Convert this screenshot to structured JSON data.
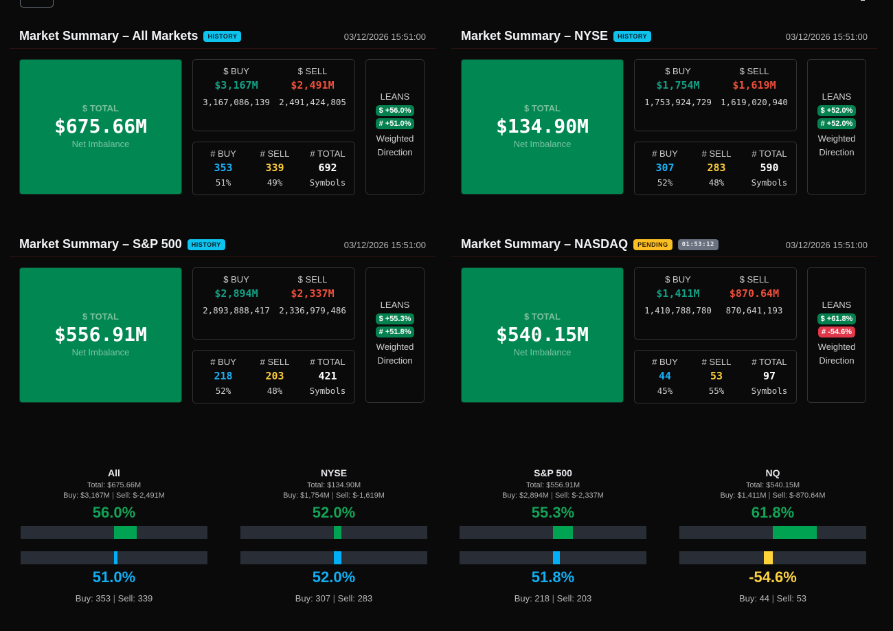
{
  "colors": {
    "background": "#0a0a0a",
    "total_box": "#008752",
    "buy_dollar": "#14a085",
    "sell_dollar": "#ef4f3b",
    "buy_count": "#1ab0f5",
    "sell_count": "#fbcb3a",
    "lean_positive": "#05804f",
    "lean_negative": "#e0384a",
    "bar_track": "#292e36",
    "bar_green": "#00a352",
    "bar_blue": "#00aff5",
    "bar_yellow": "#ffd43b"
  },
  "toolbar": {
    "menu_icon": "menu-icon",
    "top_right_icon": "chevron-down-icon"
  },
  "panels": [
    {
      "title": "Market Summary – All Markets",
      "badge": "HISTORY",
      "badge_type": "history",
      "timer": null,
      "timestamp": "03/12/2026 15:51:00",
      "total_label": "$ TOTAL",
      "total_value": "$675.66M",
      "total_sub": "Net Imbalance",
      "buy_head": "$ BUY",
      "sell_head": "$ SELL",
      "buy_value": "$3,167M",
      "sell_value": "$2,491M",
      "buy_raw": "3,167,086,139",
      "sell_raw": "2,491,424,805",
      "count_buy_head": "# BUY",
      "count_sell_head": "# SELL",
      "count_total_head": "# TOTAL",
      "count_buy": "353",
      "count_sell": "339",
      "count_total": "692",
      "count_buy_pct": "51%",
      "count_sell_pct": "49%",
      "count_total_sub": "Symbols",
      "leans_title": "LEANS",
      "lean_dollar": "$ +56.0%",
      "lean_dollar_sign": "pos",
      "lean_count": "# +51.0%",
      "lean_count_sign": "pos",
      "leans_sub_1": "Weighted",
      "leans_sub_2": "Direction"
    },
    {
      "title": "Market Summary – NYSE",
      "badge": "HISTORY",
      "badge_type": "history",
      "timer": null,
      "timestamp": "03/12/2026 15:51:00",
      "total_label": "$ TOTAL",
      "total_value": "$134.90M",
      "total_sub": "Net Imbalance",
      "buy_head": "$ BUY",
      "sell_head": "$ SELL",
      "buy_value": "$1,754M",
      "sell_value": "$1,619M",
      "buy_raw": "1,753,924,729",
      "sell_raw": "1,619,020,940",
      "count_buy_head": "# BUY",
      "count_sell_head": "# SELL",
      "count_total_head": "# TOTAL",
      "count_buy": "307",
      "count_sell": "283",
      "count_total": "590",
      "count_buy_pct": "52%",
      "count_sell_pct": "48%",
      "count_total_sub": "Symbols",
      "leans_title": "LEANS",
      "lean_dollar": "$ +52.0%",
      "lean_dollar_sign": "pos",
      "lean_count": "# +52.0%",
      "lean_count_sign": "pos",
      "leans_sub_1": "Weighted",
      "leans_sub_2": "Direction"
    },
    {
      "title": "Market Summary – S&P 500",
      "badge": "HISTORY",
      "badge_type": "history",
      "timer": null,
      "timestamp": "03/12/2026 15:51:00",
      "total_label": "$ TOTAL",
      "total_value": "$556.91M",
      "total_sub": "Net Imbalance",
      "buy_head": "$ BUY",
      "sell_head": "$ SELL",
      "buy_value": "$2,894M",
      "sell_value": "$2,337M",
      "buy_raw": "2,893,888,417",
      "sell_raw": "2,336,979,486",
      "count_buy_head": "# BUY",
      "count_sell_head": "# SELL",
      "count_total_head": "# TOTAL",
      "count_buy": "218",
      "count_sell": "203",
      "count_total": "421",
      "count_buy_pct": "52%",
      "count_sell_pct": "48%",
      "count_total_sub": "Symbols",
      "leans_title": "LEANS",
      "lean_dollar": "$ +55.3%",
      "lean_dollar_sign": "pos",
      "lean_count": "# +51.8%",
      "lean_count_sign": "pos",
      "leans_sub_1": "Weighted",
      "leans_sub_2": "Direction"
    },
    {
      "title": "Market Summary – NASDAQ",
      "badge": "PENDING",
      "badge_type": "pending",
      "timer": "01:53:12",
      "timestamp": "03/12/2026 15:51:00",
      "total_label": "$ TOTAL",
      "total_value": "$540.15M",
      "total_sub": "Net Imbalance",
      "buy_head": "$ BUY",
      "sell_head": "$ SELL",
      "buy_value": "$1,411M",
      "sell_value": "$870.64M",
      "buy_raw": "1,410,788,780",
      "sell_raw": "870,641,193",
      "count_buy_head": "# BUY",
      "count_sell_head": "# SELL",
      "count_total_head": "# TOTAL",
      "count_buy": "44",
      "count_sell": "53",
      "count_total": "97",
      "count_buy_pct": "45%",
      "count_sell_pct": "55%",
      "count_total_sub": "Symbols",
      "leans_title": "LEANS",
      "lean_dollar": "$ +61.8%",
      "lean_dollar_sign": "pos",
      "lean_count": "# -54.6%",
      "lean_count_sign": "neg",
      "leans_sub_1": "Weighted",
      "leans_sub_2": "Direction"
    }
  ],
  "gauges": [
    {
      "name": "All",
      "total_line": "Total: $675.66M",
      "buy_line": "Buy: $3,167M",
      "sell_line": "Sell: $-2,491M",
      "dollar_pct_label": "56.0%",
      "dollar_pct": 56.0,
      "count_pct_label": "51.0%",
      "count_pct": 51.0,
      "count_color": "blue",
      "buy_count_line": "Buy: 353",
      "sell_count_line": "Sell: 339"
    },
    {
      "name": "NYSE",
      "total_line": "Total: $134.90M",
      "buy_line": "Buy: $1,754M",
      "sell_line": "Sell: $-1,619M",
      "dollar_pct_label": "52.0%",
      "dollar_pct": 52.0,
      "count_pct_label": "52.0%",
      "count_pct": 52.0,
      "count_color": "blue",
      "buy_count_line": "Buy: 307",
      "sell_count_line": "Sell: 283"
    },
    {
      "name": "S&P 500",
      "total_line": "Total: $556.91M",
      "buy_line": "Buy: $2,894M",
      "sell_line": "Sell: $-2,337M",
      "dollar_pct_label": "55.3%",
      "dollar_pct": 55.3,
      "count_pct_label": "51.8%",
      "count_pct": 51.8,
      "count_color": "blue",
      "buy_count_line": "Buy: 218",
      "sell_count_line": "Sell: 203"
    },
    {
      "name": "NQ",
      "total_line": "Total: $540.15M",
      "buy_line": "Buy: $1,411M",
      "sell_line": "Sell: $-870.64M",
      "dollar_pct_label": "61.8%",
      "dollar_pct": 61.8,
      "count_pct_label": "-54.6%",
      "count_pct": -54.6,
      "count_color": "yellow",
      "buy_count_line": "Buy: 44",
      "sell_count_line": "Sell: 53"
    }
  ]
}
